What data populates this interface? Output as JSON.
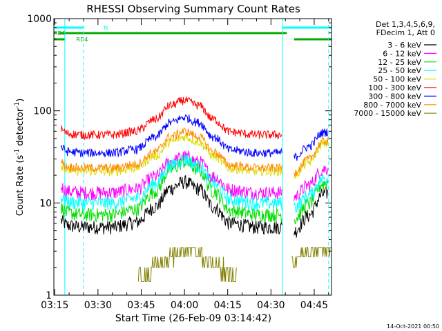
{
  "chart_data": {
    "type": "line",
    "title": "RHESSI Observing Summary Count Rates",
    "xlabel": "Start Time (26-Feb-09 03:14:42)",
    "ylabel_main": "Count Rate (s",
    "ylabel_exp1": "-1",
    "ylabel_mid": " detector",
    "ylabel_exp2": "-1",
    "ylabel_end": ")",
    "y_scale": "log",
    "ylim": [
      1,
      1000
    ],
    "x_minutes_range": [
      -0.3,
      96
    ],
    "x_ticks": [
      {
        "label": "03:15",
        "minute": 0
      },
      {
        "label": "03:30",
        "minute": 15
      },
      {
        "label": "03:45",
        "minute": 30
      },
      {
        "label": "04:00",
        "minute": 45
      },
      {
        "label": "04:15",
        "minute": 60
      },
      {
        "label": "04:30",
        "minute": 75
      },
      {
        "label": "04:45",
        "minute": 90
      }
    ],
    "y_ticks": [
      {
        "label": "1",
        "value": 1
      },
      {
        "label": "10",
        "value": 10
      },
      {
        "label": "100",
        "value": 100
      },
      {
        "label": "1000",
        "value": 1000
      }
    ],
    "legend_header": [
      "Det 1,3,4,5,6,9,",
      "FDecim 1, Att 0"
    ],
    "legend_position": "outside-right",
    "series": [
      {
        "name": "3 - 6 keV",
        "color": "#000000",
        "base": 5.5,
        "peak": 17,
        "night": 13
      },
      {
        "name": "6 - 12 keV",
        "color": "#ff00ff",
        "base": 13,
        "peak": 32,
        "night": 24
      },
      {
        "name": "12 - 25 keV",
        "color": "#00dd00",
        "base": 7.5,
        "peak": 28,
        "night": 17
      },
      {
        "name": "25 - 50 keV",
        "color": "#00ffff",
        "base": 10,
        "peak": 30,
        "night": 19
      },
      {
        "name": "50 - 100 keV",
        "color": "#dddd00",
        "base": 22,
        "peak": 52,
        "night": 45
      },
      {
        "name": "100 - 300 keV",
        "color": "#ff0000",
        "base": 55,
        "peak": 130,
        "night": null
      },
      {
        "name": "300 - 800 keV",
        "color": "#0000ff",
        "base": 35,
        "peak": 85,
        "night": 60
      },
      {
        "name": "800 - 7000 keV",
        "color": "#ff8c00",
        "base": 24,
        "peak": 60,
        "night": 48
      },
      {
        "name": "7000 - 15000 keV",
        "color": "#808000",
        "base": null,
        "peak": 3.3,
        "night": 2.8
      }
    ],
    "annotations": [
      {
        "label": "N",
        "color": "#00ffff",
        "bars": [
          [
            -0.3,
            10
          ],
          [
            79,
            96
          ]
        ]
      },
      {
        "label": "RD0",
        "color": "#00aa00",
        "bars": [
          [
            1.5,
            80.5
          ]
        ]
      },
      {
        "label": "RD4",
        "color": "#00aa00",
        "bars": [
          [
            -0.3,
            3.5
          ],
          [
            83,
            96
          ]
        ]
      }
    ],
    "vertical_lines": [
      {
        "minute": 3.5,
        "color": "#00ffff",
        "style": "solid"
      },
      {
        "minute": 10,
        "color": "#00ffff",
        "style": "dashed"
      },
      {
        "minute": 79,
        "color": "#00ffff",
        "style": "solid"
      },
      {
        "minute": 95,
        "color": "#00ffff",
        "style": "dashed"
      }
    ],
    "footer": "14-Oct-2021 00:50"
  }
}
